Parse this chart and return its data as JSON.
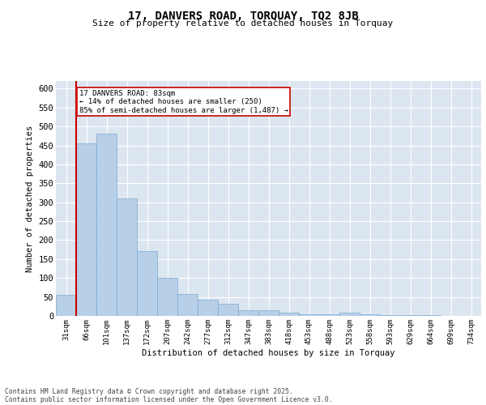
{
  "title": "17, DANVERS ROAD, TORQUAY, TQ2 8JB",
  "subtitle": "Size of property relative to detached houses in Torquay",
  "xlabel": "Distribution of detached houses by size in Torquay",
  "ylabel": "Number of detached properties",
  "bar_color": "#b8cfe8",
  "bar_edge_color": "#7aaad0",
  "background_color": "#dce6f0",
  "grid_color": "#ffffff",
  "categories": [
    "31sqm",
    "66sqm",
    "101sqm",
    "137sqm",
    "172sqm",
    "207sqm",
    "242sqm",
    "277sqm",
    "312sqm",
    "347sqm",
    "383sqm",
    "418sqm",
    "453sqm",
    "488sqm",
    "523sqm",
    "558sqm",
    "593sqm",
    "629sqm",
    "664sqm",
    "699sqm",
    "734sqm"
  ],
  "values": [
    55,
    455,
    480,
    310,
    170,
    100,
    58,
    42,
    32,
    15,
    15,
    8,
    5,
    5,
    8,
    5,
    2,
    2,
    2,
    1,
    1
  ],
  "red_line_x": 1,
  "annotation_text": "17 DANVERS ROAD: 83sqm\n← 14% of detached houses are smaller (250)\n85% of semi-detached houses are larger (1,487) →",
  "annotation_box_color": "#ffffff",
  "annotation_box_edge_color": "#cc0000",
  "red_line_color": "#cc0000",
  "ylim": [
    0,
    620
  ],
  "yticks": [
    0,
    50,
    100,
    150,
    200,
    250,
    300,
    350,
    400,
    450,
    500,
    550,
    600
  ],
  "footer_line1": "Contains HM Land Registry data © Crown copyright and database right 2025.",
  "footer_line2": "Contains public sector information licensed under the Open Government Licence v3.0."
}
